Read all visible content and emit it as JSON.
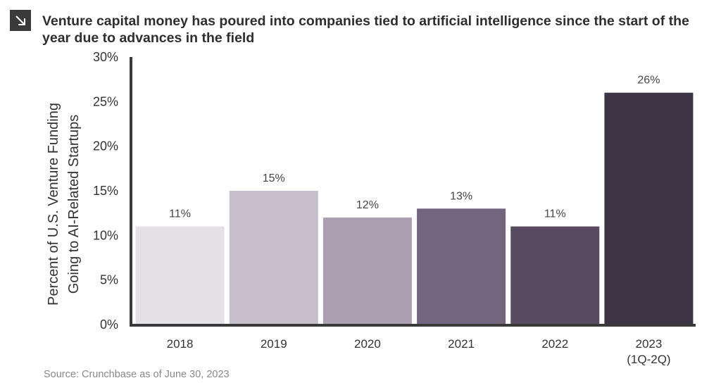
{
  "header": {
    "title": "Venture capital money has poured into companies tied to artificial intelligence since the start of the year due to advances in the field",
    "icon": "arrow-down-right-icon"
  },
  "footer": {
    "source": "Source: Crunchbase as of June 30, 2023"
  },
  "chart_data": {
    "type": "bar",
    "categories": [
      [
        "2018"
      ],
      [
        "2019"
      ],
      [
        "2020"
      ],
      [
        "2021"
      ],
      [
        "2022"
      ],
      [
        "2023",
        "(1Q-2Q)"
      ]
    ],
    "values": [
      11,
      15,
      12,
      13,
      11,
      26
    ],
    "data_labels": [
      "11%",
      "15%",
      "12%",
      "13%",
      "11%",
      "26%"
    ],
    "colors": [
      "#e3e0e6",
      "#c8bfcd",
      "#ada0b2",
      "#74657f",
      "#584a60",
      "#3c3344"
    ],
    "ylabel_lines": [
      "Percent of U.S. Venture Funding",
      "Going to AI-Related Startups"
    ],
    "ylim": [
      0,
      30
    ],
    "yticks": [
      0,
      5,
      10,
      15,
      20,
      25,
      30
    ],
    "ytick_labels": [
      "0%",
      "5%",
      "10%",
      "15%",
      "20%",
      "25%",
      "30%"
    ],
    "grid": false,
    "legend": "none"
  }
}
